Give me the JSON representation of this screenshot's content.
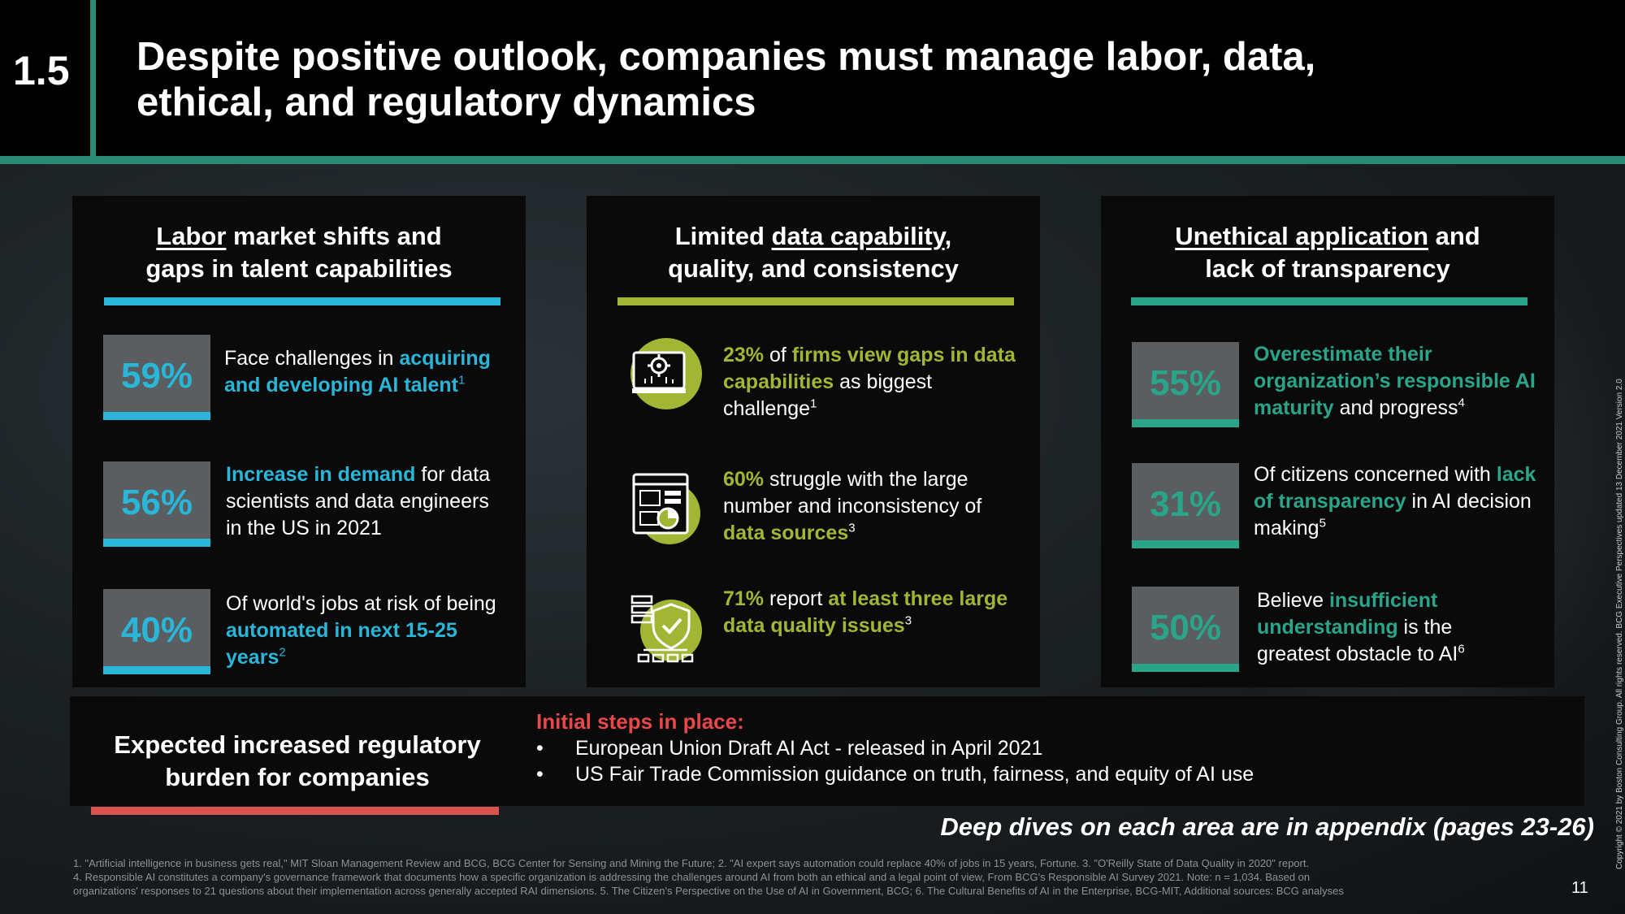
{
  "header": {
    "section_number": "1.5",
    "title": "Despite positive outlook, companies must manage labor, data, ethical, and regulatory dynamics"
  },
  "colors": {
    "teal": "#2a8a74",
    "blue": "#29b6d8",
    "green": "#2aa58a",
    "lime": "#a3b534",
    "red": "#d9534f",
    "stat_box_gray": "#5b5e60"
  },
  "labor": {
    "title_underlined": "Labor",
    "title_line1_rest": " market shifts and",
    "title_line2": "gaps in talent capabilities",
    "stats": [
      {
        "value": "59%",
        "pre": "Face challenges in ",
        "highlight": "acquiring and developing AI talent",
        "post": "",
        "sup": "1"
      },
      {
        "value": "56%",
        "pre": "",
        "highlight": "Increase in demand",
        "post": " for data scientists and data engineers in the US in 2021",
        "sup": ""
      },
      {
        "value": "40%",
        "pre": "Of world's jobs at risk of being ",
        "highlight": "automated in next 15-25 years",
        "post": "",
        "sup": "2"
      }
    ]
  },
  "data_panel": {
    "title_line1_pre": "Limited ",
    "title_underlined": "data capability",
    "title_line1_post": ",",
    "title_line2": "quality, and consistency",
    "items": [
      {
        "icon": "monitor-gear-icon",
        "value": "23%",
        "pre": " of ",
        "highlight": "firms view gaps in data capabilities",
        "post": " as biggest challenge",
        "sup": "1"
      },
      {
        "icon": "dashboard-chart-icon",
        "value": "60%",
        "pre": " struggle with the large number and inconsistency of ",
        "highlight": "data sources",
        "post": "",
        "sup": "3"
      },
      {
        "icon": "database-shield-icon",
        "value": "71%",
        "pre": " report ",
        "highlight": "at least three large data quality issues",
        "post": "",
        "sup": "3"
      }
    ]
  },
  "ethics": {
    "title_underlined": "Unethical application",
    "title_line1_rest": " and",
    "title_line2": "lack of transparency",
    "stats": [
      {
        "value": "55%",
        "pre": "",
        "highlight": "Overestimate their organization’s responsible AI maturity",
        "post": " and progress",
        "sup": "4"
      },
      {
        "value": "31%",
        "pre": "Of citizens concerned with ",
        "highlight": "lack of transparency",
        "post": " in AI decision making",
        "sup": "5"
      },
      {
        "value": "50%",
        "pre": "Believe ",
        "highlight": "insufficient understanding",
        "post": " is the greatest obstacle to AI",
        "sup": "6"
      }
    ]
  },
  "regulatory": {
    "title": "Expected increased regulatory burden for companies",
    "heading": "Initial steps in place:",
    "bullet": "•",
    "items": [
      "European Union Draft AI Act - released in April 2021",
      "US Fair Trade Commission guidance on truth, fairness, and equity of AI use"
    ]
  },
  "deep_dive": "Deep dives on each area are in appendix (pages 23-26)",
  "footnotes": [
    "1. \"Artificial intelligence in business gets real,\" MIT Sloan Management Review and BCG, BCG Center for Sensing and Mining the Future; 2. \"AI expert says automation could replace 40% of jobs in 15 years, Fortune. 3. \"O'Reilly State of Data Quality in 2020\" report.",
    "4. Responsible AI constitutes a company's governance framework that documents how a specific organization is addressing the challenges around AI from both an ethical and a legal point of view, From BCG's Responsible AI Survey 2021. Note: n = 1,034. Based on",
    "organizations' responses to 21 questions about their implementation across generally accepted RAI dimensions. 5. The Citizen's Perspective on the Use of AI in Government, BCG; 6. The Cultural Benefits of AI in the Enterprise, BCG-MIT, Additional sources: BCG analyses"
  ],
  "page_number": "11",
  "copyright": "Copyright © 2021 by Boston Consulting Group. All rights reserved. BCG Executive Perspectives updated 13 December 2021 Version 2.0"
}
